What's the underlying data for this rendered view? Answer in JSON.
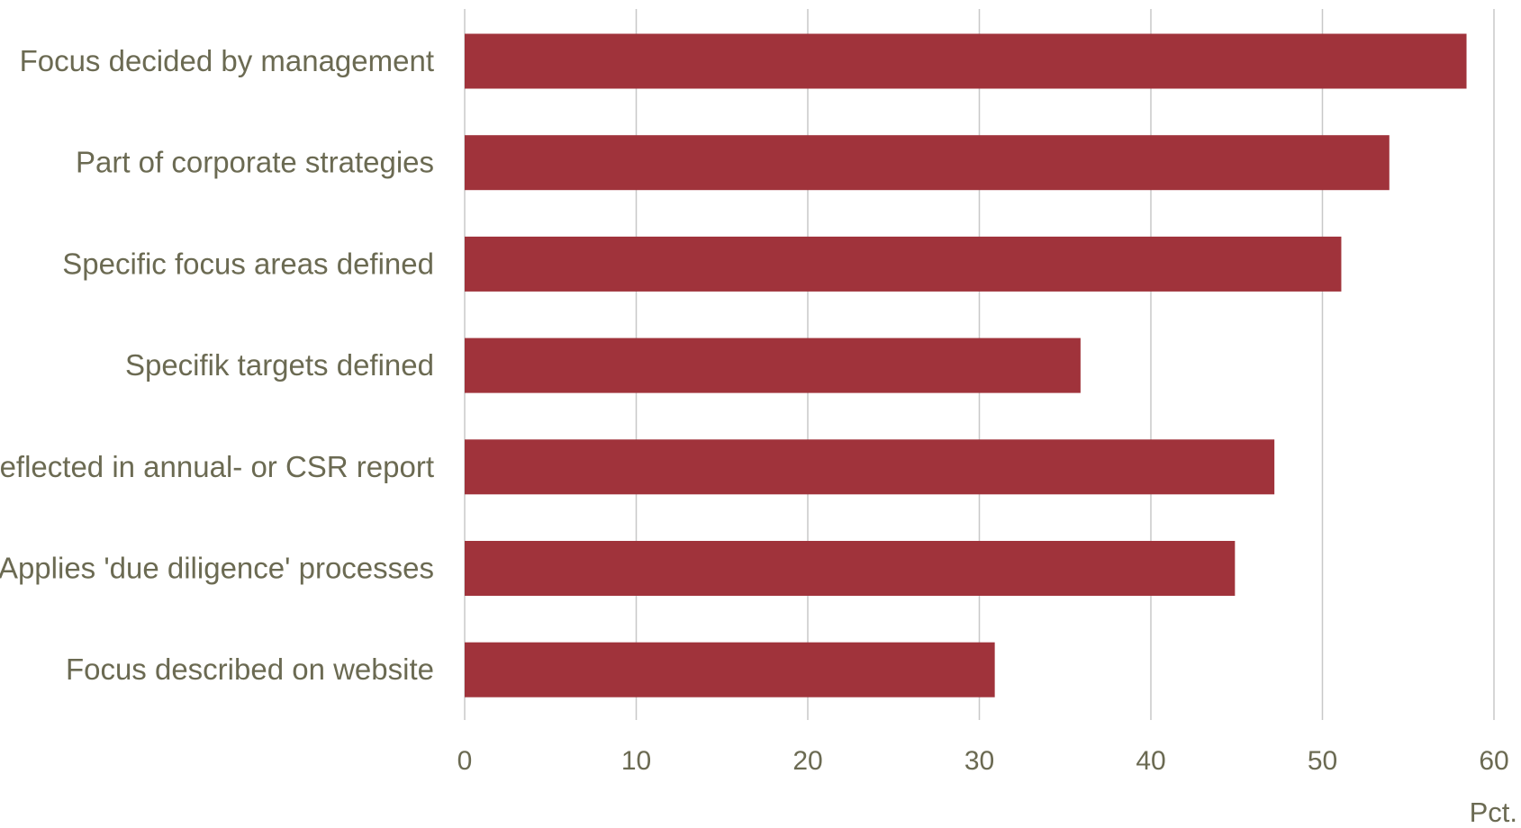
{
  "chart_data": {
    "type": "bar",
    "orientation": "horizontal",
    "categories": [
      "Focus decided by management",
      "Part of corporate strategies",
      "Specific focus areas defined",
      "Specifik targets defined",
      "Reflected in annual- or CSR report",
      "Applies 'due diligence' processes",
      "Focus described on website"
    ],
    "values": [
      58.4,
      53.9,
      51.1,
      35.9,
      47.2,
      44.9,
      30.9
    ],
    "title": "",
    "xlabel": "Pct.",
    "ylabel": "",
    "xlim": [
      0,
      60
    ],
    "x_ticks": [
      0,
      10,
      20,
      30,
      40,
      50,
      60
    ],
    "x_tick_labels": [
      "0",
      "10",
      "20",
      "30",
      "40",
      "50",
      "60"
    ],
    "grid": true,
    "legend": "none",
    "colors": {
      "bar": "#a0333b",
      "grid": "#c8c8c8",
      "text": "#6b6a52"
    }
  }
}
